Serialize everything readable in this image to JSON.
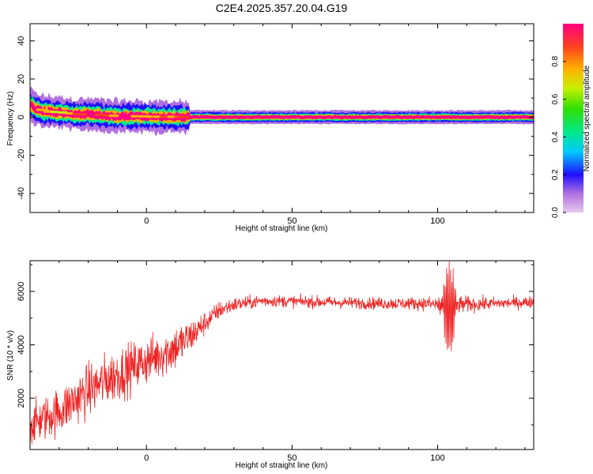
{
  "title": "C2E4.2025.357.20.04.G19",
  "chart_data": [
    {
      "type": "heatmap",
      "title": "C2E4.2025.357.20.04.G19",
      "xlabel": "Height of straight line (km)",
      "ylabel": "Frequency (Hz)",
      "xlim": [
        -40,
        133
      ],
      "ylim": [
        -50,
        49
      ],
      "xticks": [
        0,
        50,
        100
      ],
      "yticks": [
        -40,
        -20,
        0,
        20,
        40
      ],
      "colorbar": {
        "label": "Normalized spectral amplitude",
        "ticks": [
          0.0,
          0.2,
          0.4,
          0.6,
          0.8
        ],
        "tick_labels": [
          "0.0",
          "0.2",
          "0.4",
          "0.6",
          "0.8"
        ],
        "range": [
          0,
          1
        ],
        "colormap": [
          "#e8c8f0",
          "#b070e0",
          "#2010ff",
          "#00c8ff",
          "#00e890",
          "#30e000",
          "#c8f000",
          "#ffb000",
          "#ff4020",
          "#ff0080"
        ]
      },
      "ridge": [
        {
          "x": -40,
          "f": 7,
          "amp": 0.55
        },
        {
          "x": -38,
          "f": 4,
          "amp": 0.85
        },
        {
          "x": -35,
          "f": 3,
          "amp": 0.7
        },
        {
          "x": -30,
          "f": 2.5,
          "amp": 0.65
        },
        {
          "x": -25,
          "f": 1.5,
          "amp": 0.8
        },
        {
          "x": -20,
          "f": 1.5,
          "amp": 0.9
        },
        {
          "x": -15,
          "f": 1.0,
          "amp": 0.85
        },
        {
          "x": -10,
          "f": 0.5,
          "amp": 0.6
        },
        {
          "x": -5,
          "f": 0.5,
          "amp": 0.7
        },
        {
          "x": 0,
          "f": 0.3,
          "amp": 0.75
        },
        {
          "x": 5,
          "f": 0.2,
          "amp": 0.8
        },
        {
          "x": 10,
          "f": 0.1,
          "amp": 0.85
        },
        {
          "x": 15,
          "f": 0.0,
          "amp": 0.95
        },
        {
          "x": 133,
          "f": 0.0,
          "amp": 0.95
        }
      ]
    },
    {
      "type": "line",
      "series": [
        {
          "name": "SNR",
          "color": "#ee2222"
        }
      ],
      "xlabel": "Height of straight line (km)",
      "ylabel": "SNR (10 * v/v)",
      "xlim": [
        -40,
        133
      ],
      "ylim": [
        80,
        7150
      ],
      "xticks": [
        0,
        50,
        100
      ],
      "yticks": [
        2000,
        4000,
        6000
      ],
      "trend": [
        {
          "x": -40,
          "y": 1000,
          "noise": 700
        },
        {
          "x": -30,
          "y": 1500,
          "noise": 800
        },
        {
          "x": -20,
          "y": 2300,
          "noise": 900
        },
        {
          "x": -10,
          "y": 2900,
          "noise": 900
        },
        {
          "x": 0,
          "y": 3400,
          "noise": 800
        },
        {
          "x": 10,
          "y": 3900,
          "noise": 800
        },
        {
          "x": 15,
          "y": 4300,
          "noise": 600
        },
        {
          "x": 20,
          "y": 4800,
          "noise": 400
        },
        {
          "x": 25,
          "y": 5300,
          "noise": 300
        },
        {
          "x": 30,
          "y": 5500,
          "noise": 250
        },
        {
          "x": 40,
          "y": 5650,
          "noise": 200
        },
        {
          "x": 60,
          "y": 5600,
          "noise": 200
        },
        {
          "x": 80,
          "y": 5550,
          "noise": 200
        },
        {
          "x": 95,
          "y": 5550,
          "noise": 220
        },
        {
          "x": 100,
          "y": 5500,
          "noise": 300
        },
        {
          "x": 103,
          "y": 5400,
          "noise": 1200
        },
        {
          "x": 105,
          "y": 5300,
          "noise": 1400
        },
        {
          "x": 107,
          "y": 5500,
          "noise": 300
        },
        {
          "x": 120,
          "y": 5550,
          "noise": 200
        },
        {
          "x": 133,
          "y": 5600,
          "noise": 200
        }
      ]
    }
  ]
}
